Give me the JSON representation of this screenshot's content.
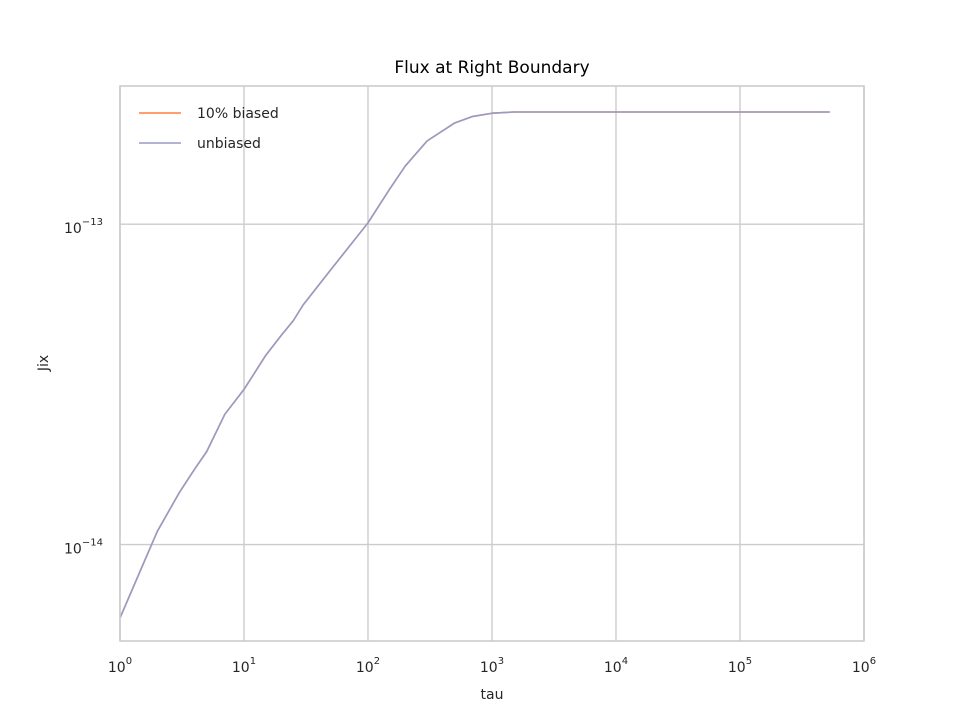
{
  "chart_data": {
    "type": "line",
    "title": "Flux at Right Boundary",
    "xlabel": "tau",
    "ylabel": "Jix",
    "xscale": "log",
    "yscale": "log",
    "xlim": [
      1,
      1000000
    ],
    "ylim": [
      5e-15,
      2.7e-13
    ],
    "grid": true,
    "legend_position": "top-left",
    "x_ticks": [
      {
        "base": "10",
        "exp": "0",
        "value": 1
      },
      {
        "base": "10",
        "exp": "1",
        "value": 10
      },
      {
        "base": "10",
        "exp": "2",
        "value": 100
      },
      {
        "base": "10",
        "exp": "3",
        "value": 1000
      },
      {
        "base": "10",
        "exp": "4",
        "value": 10000
      },
      {
        "base": "10",
        "exp": "5",
        "value": 100000
      },
      {
        "base": "10",
        "exp": "6",
        "value": 1000000
      }
    ],
    "y_ticks": [
      {
        "base": "10",
        "exp": "−13",
        "value": 1e-13
      },
      {
        "base": "10",
        "exp": "−14",
        "value": 1e-14
      }
    ],
    "x": [
      1,
      1.5,
      2,
      3,
      4,
      5,
      7,
      10,
      15,
      20,
      25,
      30,
      50,
      100,
      150,
      200,
      300,
      500,
      700,
      1000,
      1500,
      3000,
      10000,
      100000,
      530000
    ],
    "series": [
      {
        "name": "10% biased",
        "color": "#FF7F3F",
        "values": [
          5.9e-15,
          8.5e-15,
          1.1e-14,
          1.45e-14,
          1.72e-14,
          1.95e-14,
          2.55e-14,
          3.05e-14,
          3.9e-14,
          4.5e-14,
          5e-14,
          5.6e-14,
          7.2e-14,
          1.01e-13,
          1.29e-13,
          1.52e-13,
          1.82e-13,
          2.07e-13,
          2.17e-13,
          2.22e-13,
          2.24e-13,
          2.24e-13,
          2.24e-13,
          2.24e-13,
          2.24e-13
        ]
      },
      {
        "name": "unbiased",
        "color": "#9A9AC9",
        "values": [
          5.9e-15,
          8.5e-15,
          1.1e-14,
          1.45e-14,
          1.72e-14,
          1.95e-14,
          2.55e-14,
          3.05e-14,
          3.9e-14,
          4.5e-14,
          5e-14,
          5.6e-14,
          7.2e-14,
          1.01e-13,
          1.29e-13,
          1.52e-13,
          1.82e-13,
          2.07e-13,
          2.17e-13,
          2.22e-13,
          2.24e-13,
          2.24e-13,
          2.24e-13,
          2.24e-13,
          2.24e-13
        ]
      }
    ],
    "style": {
      "grid_color": "#CCCCCC",
      "spine_color": "#CCCCCC",
      "background": "#FFFFFF"
    }
  }
}
